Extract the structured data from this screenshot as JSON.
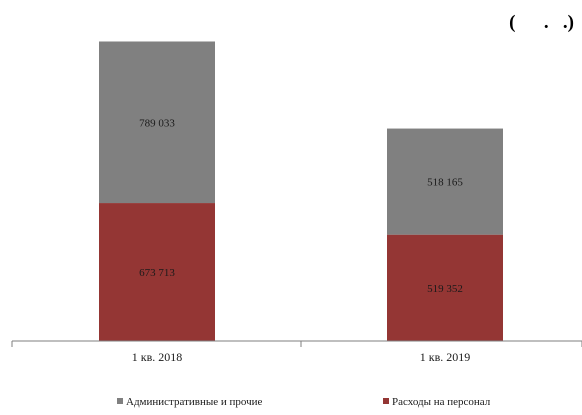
{
  "units_label": "(      .   .)",
  "chart_data": {
    "type": "bar",
    "stacked": true,
    "categories": [
      "1 кв. 2018",
      "1 кв. 2019"
    ],
    "series": [
      {
        "name": "Расходы на персонал",
        "values": [
          673713,
          519352
        ],
        "color": "#943634"
      },
      {
        "name": "Административные и прочие",
        "values": [
          789033,
          518165
        ],
        "color": "#808080"
      }
    ],
    "legend_order": [
      1,
      0
    ],
    "value_labels": {
      "Расходы на персонал": [
        "673 713",
        "519 352"
      ],
      "Административные и прочие": [
        "789 033",
        "518 165"
      ]
    },
    "ylim": [
      0,
      1470000
    ],
    "grid": false,
    "legend": "bottom"
  }
}
